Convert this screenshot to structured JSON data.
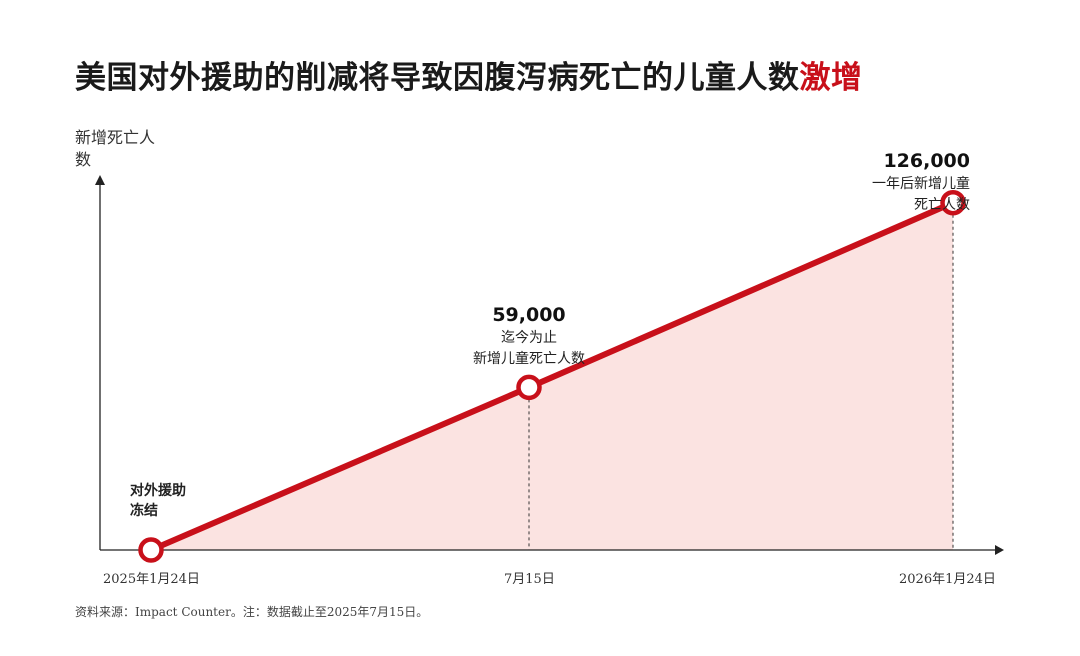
{
  "title": {
    "main": "美国对外援助的削减将导致因腹泻病死亡的儿童人数",
    "highlight": "激增"
  },
  "source_note": "资料来源：Impact Counter。注：数据截止至2025年7月15日。",
  "colors": {
    "line": "#c8101a",
    "area": "#fbe3e1",
    "axis": "#222222"
  },
  "chart_data": {
    "type": "area",
    "title": "美国对外援助的削减将导致因腹泻病死亡的儿童人数激增",
    "ylabel": "新增死亡人数",
    "xlabel": "",
    "x": [
      "2025年1月24日",
      "7月15日",
      "2026年1月24日"
    ],
    "y": [
      0,
      59000,
      126000
    ],
    "ylim": [
      0,
      156000
    ],
    "grid": false,
    "point_labels": [
      {
        "value": "",
        "text": [
          "对外援助",
          "冻结"
        ]
      },
      {
        "value": "59,000",
        "text": [
          "迄今为止",
          "新增儿童死亡人数"
        ]
      },
      {
        "value": "126,000",
        "text": [
          "一年后新增儿童",
          "死亡人数"
        ]
      }
    ]
  }
}
